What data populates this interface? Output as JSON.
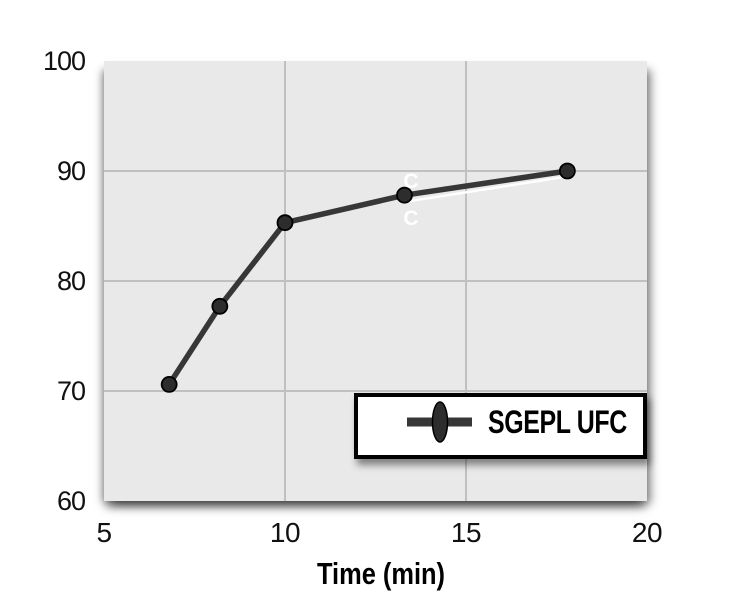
{
  "colors": {
    "page_background": "#ffffff",
    "plot_background": "#e9e9e9",
    "gridline": "#c0c0c0",
    "series_line": "#373737",
    "marker_fill": "#2d2d2d",
    "marker_edge": "#000000",
    "text": "#111111",
    "legend_border": "#000000",
    "legend_background": "#ffffff"
  },
  "chart_data": {
    "type": "line",
    "xlabel": "Time (min)",
    "ylabel": "",
    "xlim": [
      5,
      20
    ],
    "ylim": [
      60,
      100
    ],
    "x_ticks": [
      5,
      10,
      15,
      20
    ],
    "y_ticks": [
      60,
      70,
      80,
      90,
      100
    ],
    "grid": true,
    "legend_position": "bottom-right",
    "series": [
      {
        "name": "SGEPL UFC",
        "x": [
          6.8,
          8.2,
          10.0,
          13.3,
          17.8
        ],
        "y": [
          70.6,
          77.7,
          85.3,
          87.8,
          90.0
        ],
        "color": "#373737",
        "marker": "circle"
      }
    ],
    "annotations": [
      {
        "type": "text",
        "text": "C",
        "x": 13.48,
        "y": 89.2,
        "color": "#ffffff"
      },
      {
        "type": "text",
        "text": "C",
        "x": 13.48,
        "y": 85.8,
        "color": "#ffffff"
      },
      {
        "type": "line",
        "x1": 13.32,
        "y1": 87.2,
        "x2": 17.8,
        "y2": 89.5,
        "color": "#ffffff"
      }
    ]
  }
}
